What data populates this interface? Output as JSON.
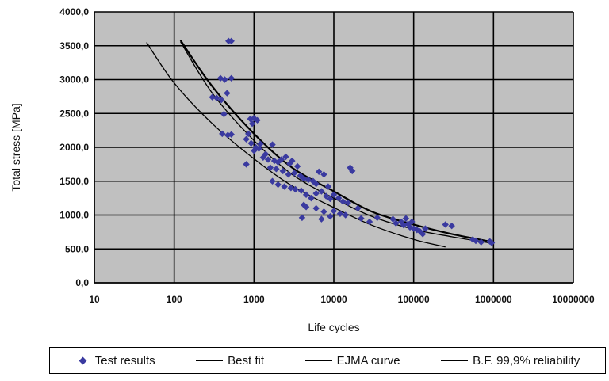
{
  "chart_data": {
    "type": "scatter",
    "xlabel": "Life cycles",
    "ylabel": "Total stress [MPa]",
    "xscale": "log",
    "xlim": [
      10,
      10000000
    ],
    "ylim": [
      0,
      4000
    ],
    "x_ticks": [
      "10",
      "100",
      "1000",
      "10000",
      "100000",
      "1000000",
      "10000000"
    ],
    "y_ticks": [
      "0,0",
      "500,0",
      "1000,0",
      "1500,0",
      "2000,0",
      "2500,0",
      "3000,0",
      "3500,0",
      "4000,0"
    ],
    "grid": true,
    "plot_background": "#c0c0c0",
    "legend_position": "bottom",
    "series": [
      {
        "name": "Test results",
        "kind": "points",
        "color": "#3a3aa0",
        "points": [
          [
            480,
            3570
          ],
          [
            520,
            3570
          ],
          [
            380,
            3020
          ],
          [
            430,
            3000
          ],
          [
            520,
            3020
          ],
          [
            300,
            2740
          ],
          [
            340,
            2730
          ],
          [
            390,
            2700
          ],
          [
            460,
            2800
          ],
          [
            420,
            2490
          ],
          [
            400,
            2200
          ],
          [
            470,
            2180
          ],
          [
            520,
            2190
          ],
          [
            900,
            2420
          ],
          [
            1000,
            2430
          ],
          [
            1100,
            2400
          ],
          [
            950,
            2350
          ],
          [
            850,
            2200
          ],
          [
            800,
            2120
          ],
          [
            920,
            2060
          ],
          [
            1050,
            2000
          ],
          [
            1150,
            1980
          ],
          [
            1000,
            1950
          ],
          [
            1200,
            2050
          ],
          [
            1400,
            1900
          ],
          [
            1700,
            2040
          ],
          [
            1300,
            1850
          ],
          [
            1500,
            1820
          ],
          [
            1800,
            1800
          ],
          [
            2000,
            1780
          ],
          [
            2200,
            1820
          ],
          [
            2500,
            1860
          ],
          [
            2800,
            1760
          ],
          [
            3000,
            1800
          ],
          [
            3500,
            1720
          ],
          [
            1600,
            1700
          ],
          [
            1900,
            1680
          ],
          [
            2300,
            1650
          ],
          [
            2700,
            1600
          ],
          [
            3200,
            1620
          ],
          [
            3800,
            1580
          ],
          [
            4200,
            1540
          ],
          [
            4800,
            1520
          ],
          [
            5500,
            1500
          ],
          [
            6000,
            1460
          ],
          [
            6500,
            1640
          ],
          [
            7500,
            1600
          ],
          [
            8500,
            1420
          ],
          [
            800,
            1750
          ],
          [
            1700,
            1500
          ],
          [
            2000,
            1450
          ],
          [
            2400,
            1420
          ],
          [
            2900,
            1400
          ],
          [
            3300,
            1380
          ],
          [
            3900,
            1360
          ],
          [
            4500,
            1300
          ],
          [
            5200,
            1250
          ],
          [
            6000,
            1320
          ],
          [
            7000,
            1350
          ],
          [
            8000,
            1280
          ],
          [
            9000,
            1240
          ],
          [
            10000,
            1300
          ],
          [
            11500,
            1250
          ],
          [
            13000,
            1200
          ],
          [
            15000,
            1180
          ],
          [
            17000,
            1650
          ],
          [
            16000,
            1700
          ],
          [
            4200,
            1150
          ],
          [
            4500,
            1120
          ],
          [
            6000,
            1100
          ],
          [
            7500,
            1050
          ],
          [
            10000,
            1060
          ],
          [
            12000,
            1020
          ],
          [
            4000,
            960
          ],
          [
            7000,
            940
          ],
          [
            9000,
            980
          ],
          [
            14000,
            1000
          ],
          [
            20000,
            1100
          ],
          [
            22000,
            950
          ],
          [
            28000,
            900
          ],
          [
            35000,
            960
          ],
          [
            55000,
            940
          ],
          [
            60000,
            880
          ],
          [
            70000,
            900
          ],
          [
            75000,
            850
          ],
          [
            80000,
            950
          ],
          [
            85000,
            870
          ],
          [
            90000,
            820
          ],
          [
            95000,
            900
          ],
          [
            100000,
            800
          ],
          [
            110000,
            780
          ],
          [
            120000,
            760
          ],
          [
            130000,
            720
          ],
          [
            140000,
            800
          ],
          [
            250000,
            860
          ],
          [
            300000,
            840
          ],
          [
            550000,
            640
          ],
          [
            600000,
            620
          ],
          [
            700000,
            600
          ],
          [
            900000,
            610
          ],
          [
            950000,
            590
          ]
        ]
      },
      {
        "name": "Best fit",
        "kind": "line",
        "color": "#000000",
        "width": 2.2,
        "points": [
          [
            120,
            3580
          ],
          [
            300,
            2900
          ],
          [
            1000,
            2200
          ],
          [
            3000,
            1700
          ],
          [
            10000,
            1350
          ],
          [
            30000,
            1050
          ],
          [
            100000,
            860
          ],
          [
            300000,
            720
          ],
          [
            1000000,
            600
          ]
        ]
      },
      {
        "name": "EJMA curve",
        "kind": "line",
        "color": "#000000",
        "width": 1.3,
        "points": [
          [
            45,
            3550
          ],
          [
            100,
            2950
          ],
          [
            300,
            2350
          ],
          [
            1000,
            1830
          ],
          [
            3000,
            1430
          ],
          [
            10000,
            1110
          ],
          [
            30000,
            850
          ],
          [
            100000,
            640
          ],
          [
            250000,
            530
          ]
        ]
      },
      {
        "name": "B.F. 99,9% reliability",
        "kind": "line",
        "color": "#000000",
        "width": 1.3,
        "points": [
          [
            120,
            3560
          ],
          [
            300,
            2800
          ],
          [
            1000,
            2100
          ],
          [
            3000,
            1600
          ],
          [
            10000,
            1250
          ],
          [
            30000,
            980
          ],
          [
            100000,
            790
          ],
          [
            300000,
            680
          ],
          [
            1000000,
            580
          ]
        ]
      }
    ]
  }
}
